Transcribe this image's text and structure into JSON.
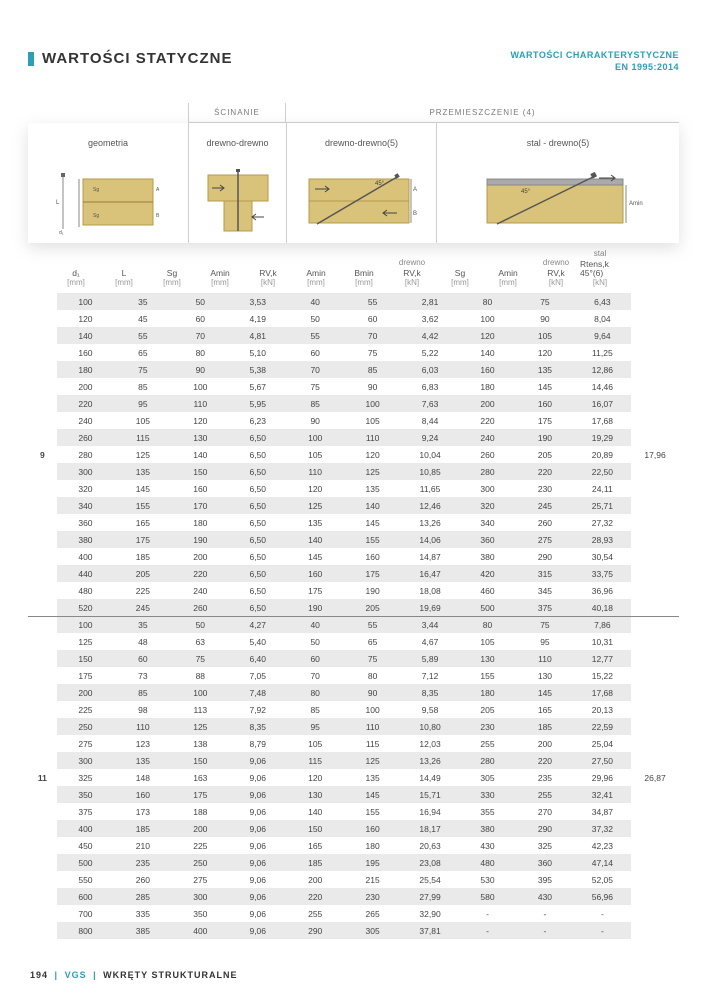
{
  "title": "WARTOŚCI STATYCZNE",
  "subtitle_line1": "WARTOŚCI CHARAKTERYSTYCZNE",
  "subtitle_line2": "EN 1995:2014",
  "top_headers": {
    "scinanie": "ŚCINANIE",
    "przemieszczenie": "PRZEMIESZCZENIE (4)"
  },
  "block_labels": {
    "geometria": "geometria",
    "drewno_drewno": "drewno-drewno",
    "drewno_drewno5": "drewno-drewno(5)",
    "stal_drewno": "stal - drewno(5)"
  },
  "col_headers": [
    {
      "lbl": "d₁",
      "unit": "[mm]"
    },
    {
      "lbl": "L",
      "unit": "[mm]"
    },
    {
      "lbl": "Sg",
      "unit": "[mm]"
    },
    {
      "lbl": "Amin",
      "unit": "[mm]"
    },
    {
      "lbl": "RV,k",
      "unit": "[kN]"
    },
    {
      "lbl": "Amin",
      "unit": "[mm]"
    },
    {
      "lbl": "Bmin",
      "unit": "[mm]"
    },
    {
      "mat": "drewno",
      "lbl": "RV,k",
      "unit": "[kN]"
    },
    {
      "lbl": "Sg",
      "unit": "[mm]"
    },
    {
      "lbl": "Amin",
      "unit": "[mm]"
    },
    {
      "mat": "drewno",
      "lbl": "RV,k",
      "unit": "[kN]"
    },
    {
      "mat": "stal",
      "lbl": "Rtens,k 45°(6)",
      "unit": "[kN]"
    }
  ],
  "groups": [
    {
      "id": "9",
      "right_val": "17,96",
      "rows": [
        [
          "100",
          "35",
          "50",
          "3,53",
          "40",
          "55",
          "2,81",
          "80",
          "75",
          "6,43"
        ],
        [
          "120",
          "45",
          "60",
          "4,19",
          "50",
          "60",
          "3,62",
          "100",
          "90",
          "8,04"
        ],
        [
          "140",
          "55",
          "70",
          "4,81",
          "55",
          "70",
          "4,42",
          "120",
          "105",
          "9,64"
        ],
        [
          "160",
          "65",
          "80",
          "5,10",
          "60",
          "75",
          "5,22",
          "140",
          "120",
          "11,25"
        ],
        [
          "180",
          "75",
          "90",
          "5,38",
          "70",
          "85",
          "6,03",
          "160",
          "135",
          "12,86"
        ],
        [
          "200",
          "85",
          "100",
          "5,67",
          "75",
          "90",
          "6,83",
          "180",
          "145",
          "14,46"
        ],
        [
          "220",
          "95",
          "110",
          "5,95",
          "85",
          "100",
          "7,63",
          "200",
          "160",
          "16,07"
        ],
        [
          "240",
          "105",
          "120",
          "6,23",
          "90",
          "105",
          "8,44",
          "220",
          "175",
          "17,68"
        ],
        [
          "260",
          "115",
          "130",
          "6,50",
          "100",
          "110",
          "9,24",
          "240",
          "190",
          "19,29"
        ],
        [
          "280",
          "125",
          "140",
          "6,50",
          "105",
          "120",
          "10,04",
          "260",
          "205",
          "20,89"
        ],
        [
          "300",
          "135",
          "150",
          "6,50",
          "110",
          "125",
          "10,85",
          "280",
          "220",
          "22,50"
        ],
        [
          "320",
          "145",
          "160",
          "6,50",
          "120",
          "135",
          "11,65",
          "300",
          "230",
          "24,11"
        ],
        [
          "340",
          "155",
          "170",
          "6,50",
          "125",
          "140",
          "12,46",
          "320",
          "245",
          "25,71"
        ],
        [
          "360",
          "165",
          "180",
          "6,50",
          "135",
          "145",
          "13,26",
          "340",
          "260",
          "27,32"
        ],
        [
          "380",
          "175",
          "190",
          "6,50",
          "140",
          "155",
          "14,06",
          "360",
          "275",
          "28,93"
        ],
        [
          "400",
          "185",
          "200",
          "6,50",
          "145",
          "160",
          "14,87",
          "380",
          "290",
          "30,54"
        ],
        [
          "440",
          "205",
          "220",
          "6,50",
          "160",
          "175",
          "16,47",
          "420",
          "315",
          "33,75"
        ],
        [
          "480",
          "225",
          "240",
          "6,50",
          "175",
          "190",
          "18,08",
          "460",
          "345",
          "36,96"
        ],
        [
          "520",
          "245",
          "260",
          "6,50",
          "190",
          "205",
          "19,69",
          "500",
          "375",
          "40,18"
        ]
      ]
    },
    {
      "id": "11",
      "right_val": "26,87",
      "rows": [
        [
          "100",
          "35",
          "50",
          "4,27",
          "40",
          "55",
          "3,44",
          "80",
          "75",
          "7,86"
        ],
        [
          "125",
          "48",
          "63",
          "5,40",
          "50",
          "65",
          "4,67",
          "105",
          "95",
          "10,31"
        ],
        [
          "150",
          "60",
          "75",
          "6,40",
          "60",
          "75",
          "5,89",
          "130",
          "110",
          "12,77"
        ],
        [
          "175",
          "73",
          "88",
          "7,05",
          "70",
          "80",
          "7,12",
          "155",
          "130",
          "15,22"
        ],
        [
          "200",
          "85",
          "100",
          "7,48",
          "80",
          "90",
          "8,35",
          "180",
          "145",
          "17,68"
        ],
        [
          "225",
          "98",
          "113",
          "7,92",
          "85",
          "100",
          "9,58",
          "205",
          "165",
          "20,13"
        ],
        [
          "250",
          "110",
          "125",
          "8,35",
          "95",
          "110",
          "10,80",
          "230",
          "185",
          "22,59"
        ],
        [
          "275",
          "123",
          "138",
          "8,79",
          "105",
          "115",
          "12,03",
          "255",
          "200",
          "25,04"
        ],
        [
          "300",
          "135",
          "150",
          "9,06",
          "115",
          "125",
          "13,26",
          "280",
          "220",
          "27,50"
        ],
        [
          "325",
          "148",
          "163",
          "9,06",
          "120",
          "135",
          "14,49",
          "305",
          "235",
          "29,96"
        ],
        [
          "350",
          "160",
          "175",
          "9,06",
          "130",
          "145",
          "15,71",
          "330",
          "255",
          "32,41"
        ],
        [
          "375",
          "173",
          "188",
          "9,06",
          "140",
          "155",
          "16,94",
          "355",
          "270",
          "34,87"
        ],
        [
          "400",
          "185",
          "200",
          "9,06",
          "150",
          "160",
          "18,17",
          "380",
          "290",
          "37,32"
        ],
        [
          "450",
          "210",
          "225",
          "9,06",
          "165",
          "180",
          "20,63",
          "430",
          "325",
          "42,23"
        ],
        [
          "500",
          "235",
          "250",
          "9,06",
          "185",
          "195",
          "23,08",
          "480",
          "360",
          "47,14"
        ],
        [
          "550",
          "260",
          "275",
          "9,06",
          "200",
          "215",
          "25,54",
          "530",
          "395",
          "52,05"
        ],
        [
          "600",
          "285",
          "300",
          "9,06",
          "220",
          "230",
          "27,99",
          "580",
          "430",
          "56,96"
        ],
        [
          "700",
          "335",
          "350",
          "9,06",
          "255",
          "265",
          "32,90",
          "-",
          "-",
          "-"
        ],
        [
          "800",
          "385",
          "400",
          "9,06",
          "290",
          "305",
          "37,81",
          "-",
          "-",
          "-"
        ]
      ]
    }
  ],
  "footer": {
    "page": "194",
    "sep": "|",
    "brand": "VGS",
    "section": "WKRĘTY STRUKTURALNE"
  },
  "colors": {
    "accent": "#2aa0b5",
    "stripe": "#eaeaea",
    "text": "#333333",
    "header_text": "#7a7a7a"
  }
}
